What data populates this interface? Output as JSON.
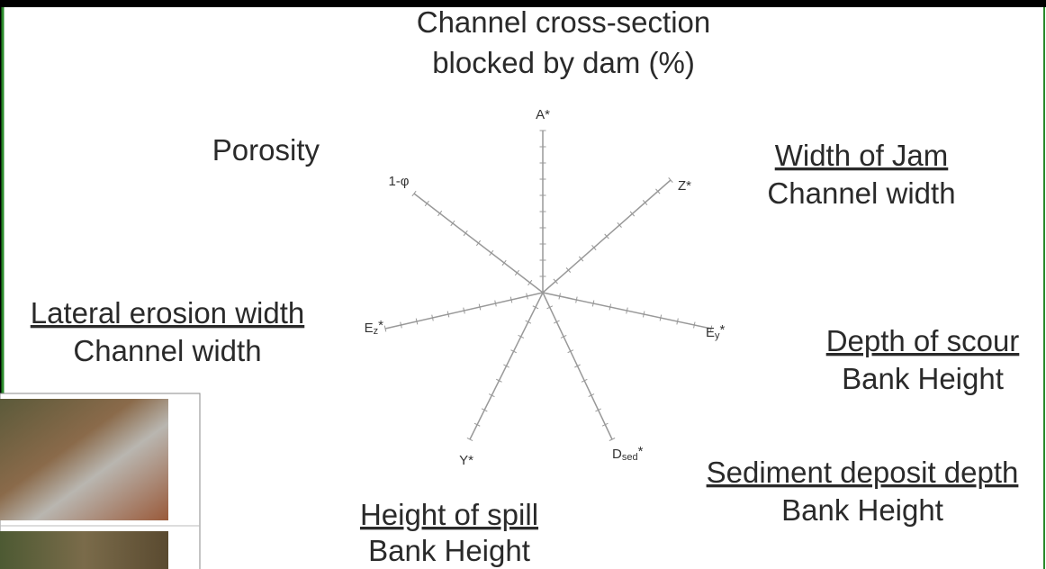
{
  "title": [
    "Channel cross-section",
    "blocked by dam (%)"
  ],
  "axes": [
    {
      "base": "A",
      "sup": "*"
    },
    {
      "base": "Z",
      "sup": "*"
    },
    {
      "base": "E",
      "sub": "y",
      "sup": "*"
    },
    {
      "base": "D",
      "sub": "sed",
      "sup": "*"
    },
    {
      "base": "Y",
      "sup": "*"
    },
    {
      "base": "E",
      "sub": "z",
      "sup": "*"
    },
    {
      "base": "1-φ"
    }
  ],
  "porosity": "Porosity",
  "ratios": [
    {
      "numerator": "Width of Jam",
      "denominator": "Channel width"
    },
    {
      "numerator": "Lateral erosion width",
      "denominator": "Channel width"
    },
    {
      "numerator": "Depth of scour",
      "denominator": "Bank Height"
    },
    {
      "numerator": "Sediment deposit depth",
      "denominator": "Bank Height"
    },
    {
      "numerator": "Height of spill",
      "denominator": "Bank Height"
    }
  ]
}
